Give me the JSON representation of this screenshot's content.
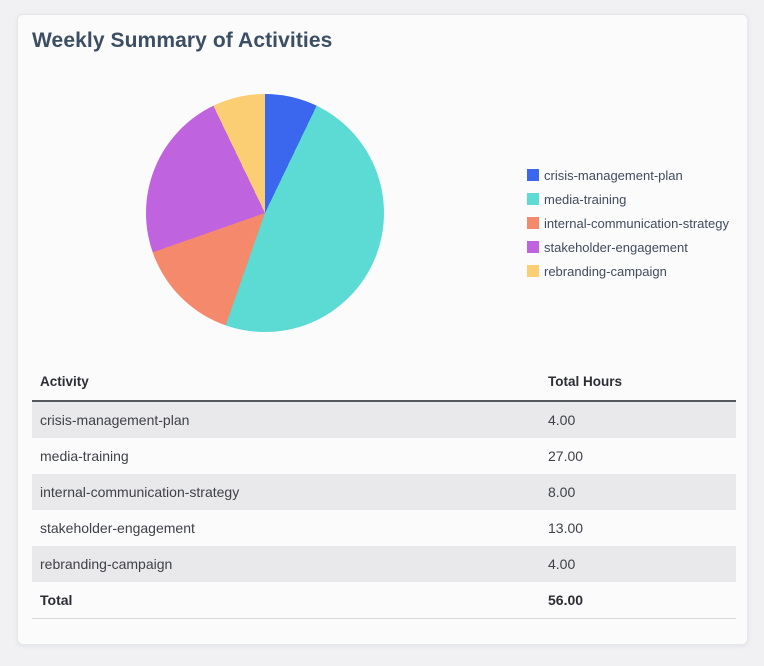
{
  "card": {
    "title": "Weekly Summary of Activities"
  },
  "chart_data": {
    "type": "pie",
    "title": "Weekly Summary of Activities",
    "labels": [
      "crisis-management-plan",
      "media-training",
      "internal-communication-strategy",
      "stakeholder-engagement",
      "rebranding-campaign"
    ],
    "values": [
      4,
      27,
      8,
      13,
      4
    ],
    "total": 56,
    "colors": [
      "#3a67ee",
      "#5cdbd5",
      "#f5896b",
      "#c063df",
      "#fbce74"
    ],
    "legend_position": "right",
    "start_angle_deg": 0,
    "direction": "clockwise"
  },
  "table": {
    "headers": [
      "Activity",
      "Total Hours"
    ],
    "rows": [
      {
        "activity": "crisis-management-plan",
        "hours": "4.00"
      },
      {
        "activity": "media-training",
        "hours": "27.00"
      },
      {
        "activity": "internal-communication-strategy",
        "hours": "8.00"
      },
      {
        "activity": "stakeholder-engagement",
        "hours": "13.00"
      },
      {
        "activity": "rebranding-campaign",
        "hours": "4.00"
      }
    ],
    "total_row": {
      "label": "Total",
      "hours": "56.00"
    }
  }
}
